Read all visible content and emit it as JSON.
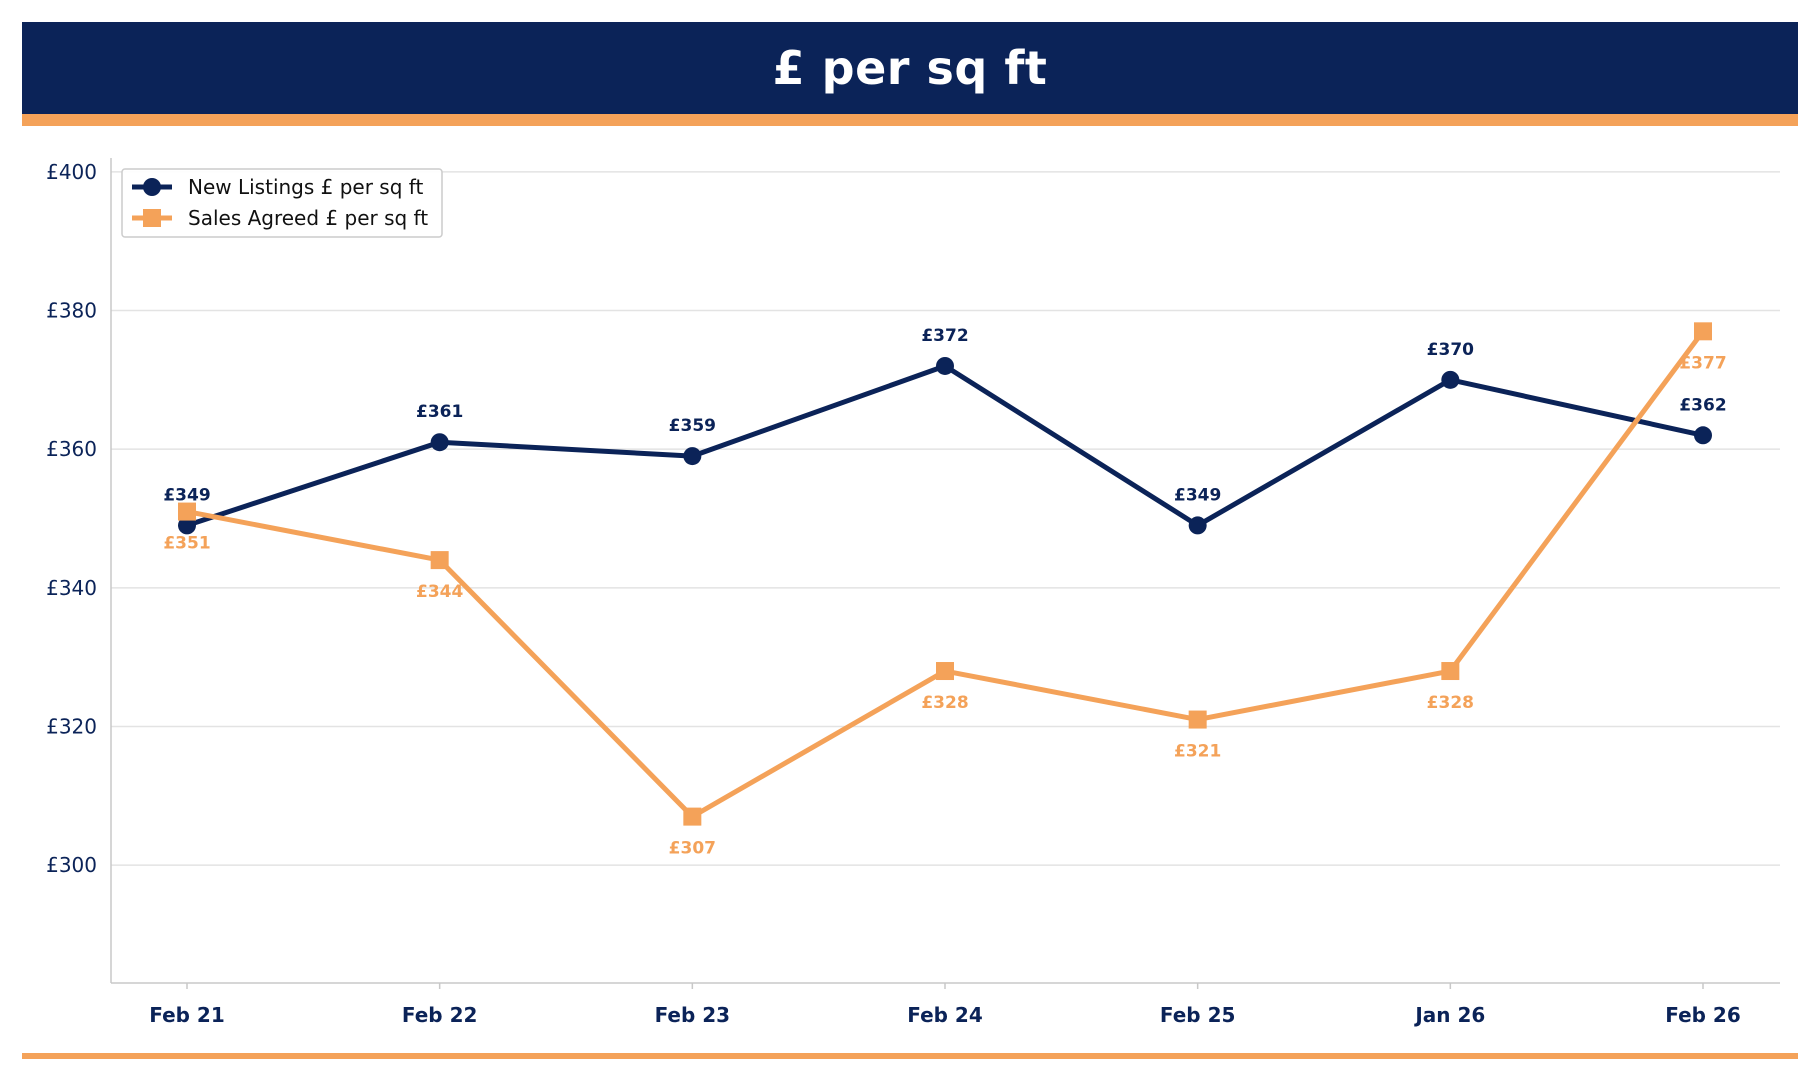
{
  "header": {
    "title": "£ per sq ft"
  },
  "colors": {
    "navy": "#0b2358",
    "orange": "#f4a259",
    "grid": "#e3e3e3",
    "axis": "#c8c8c8"
  },
  "chart_data": {
    "type": "line",
    "title": "£ per sq ft",
    "xlabel": "",
    "ylabel": "",
    "categories": [
      "Feb 21",
      "Feb 22",
      "Feb 23",
      "Feb 24",
      "Feb 25",
      "Jan 26",
      "Feb 26"
    ],
    "ylim": [
      283,
      402
    ],
    "yticks": [
      300,
      320,
      340,
      360,
      380,
      400
    ],
    "ytick_labels": [
      "£300",
      "£320",
      "£340",
      "£360",
      "£380",
      "£400"
    ],
    "grid": true,
    "legend_position": "top-left",
    "series": [
      {
        "name": "New Listings £ per sq ft",
        "marker": "circle",
        "color": "#0b2358",
        "label_position": "above",
        "values": [
          349,
          361,
          359,
          372,
          349,
          370,
          362
        ],
        "labels": [
          "£349",
          "£361",
          "£359",
          "£372",
          "£349",
          "£370",
          "£362"
        ]
      },
      {
        "name": "Sales Agreed £ per sq ft",
        "marker": "square",
        "color": "#f4a259",
        "label_position": "below",
        "values": [
          351,
          344,
          307,
          328,
          321,
          328,
          377
        ],
        "labels": [
          "£351",
          "£344",
          "£307",
          "£328",
          "£321",
          "£328",
          "£377"
        ]
      }
    ]
  }
}
